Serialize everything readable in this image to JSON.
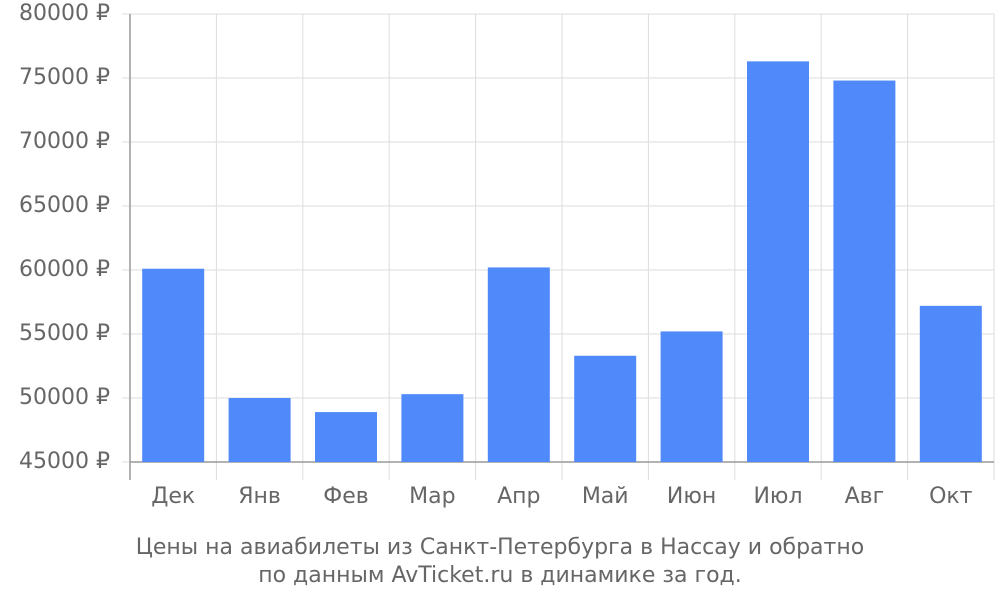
{
  "chart_data": {
    "type": "bar",
    "title": [
      "Цены на авиабилеты из Санкт-Петербурга в Нассау и обратно",
      "по данным AvTicket.ru в динамике за год."
    ],
    "categories": [
      "Дек",
      "Янв",
      "Фев",
      "Мар",
      "Апр",
      "Май",
      "Июн",
      "Июл",
      "Авг",
      "Окт"
    ],
    "values": [
      60100,
      50000,
      48900,
      50300,
      60200,
      53300,
      55200,
      76300,
      74800,
      57200
    ],
    "color": "#4f89fa",
    "ylim": [
      45000,
      80000
    ],
    "yticks": [
      {
        "value": 45000,
        "label": "45000 ₽"
      },
      {
        "value": 50000,
        "label": "50000 ₽"
      },
      {
        "value": 55000,
        "label": "55000 ₽"
      },
      {
        "value": 60000,
        "label": "60000 ₽"
      },
      {
        "value": 65000,
        "label": "65000 ₽"
      },
      {
        "value": 70000,
        "label": "70000 ₽"
      },
      {
        "value": 75000,
        "label": "75000 ₽"
      },
      {
        "value": 80000,
        "label": "80000 ₽"
      }
    ],
    "grid": true
  }
}
